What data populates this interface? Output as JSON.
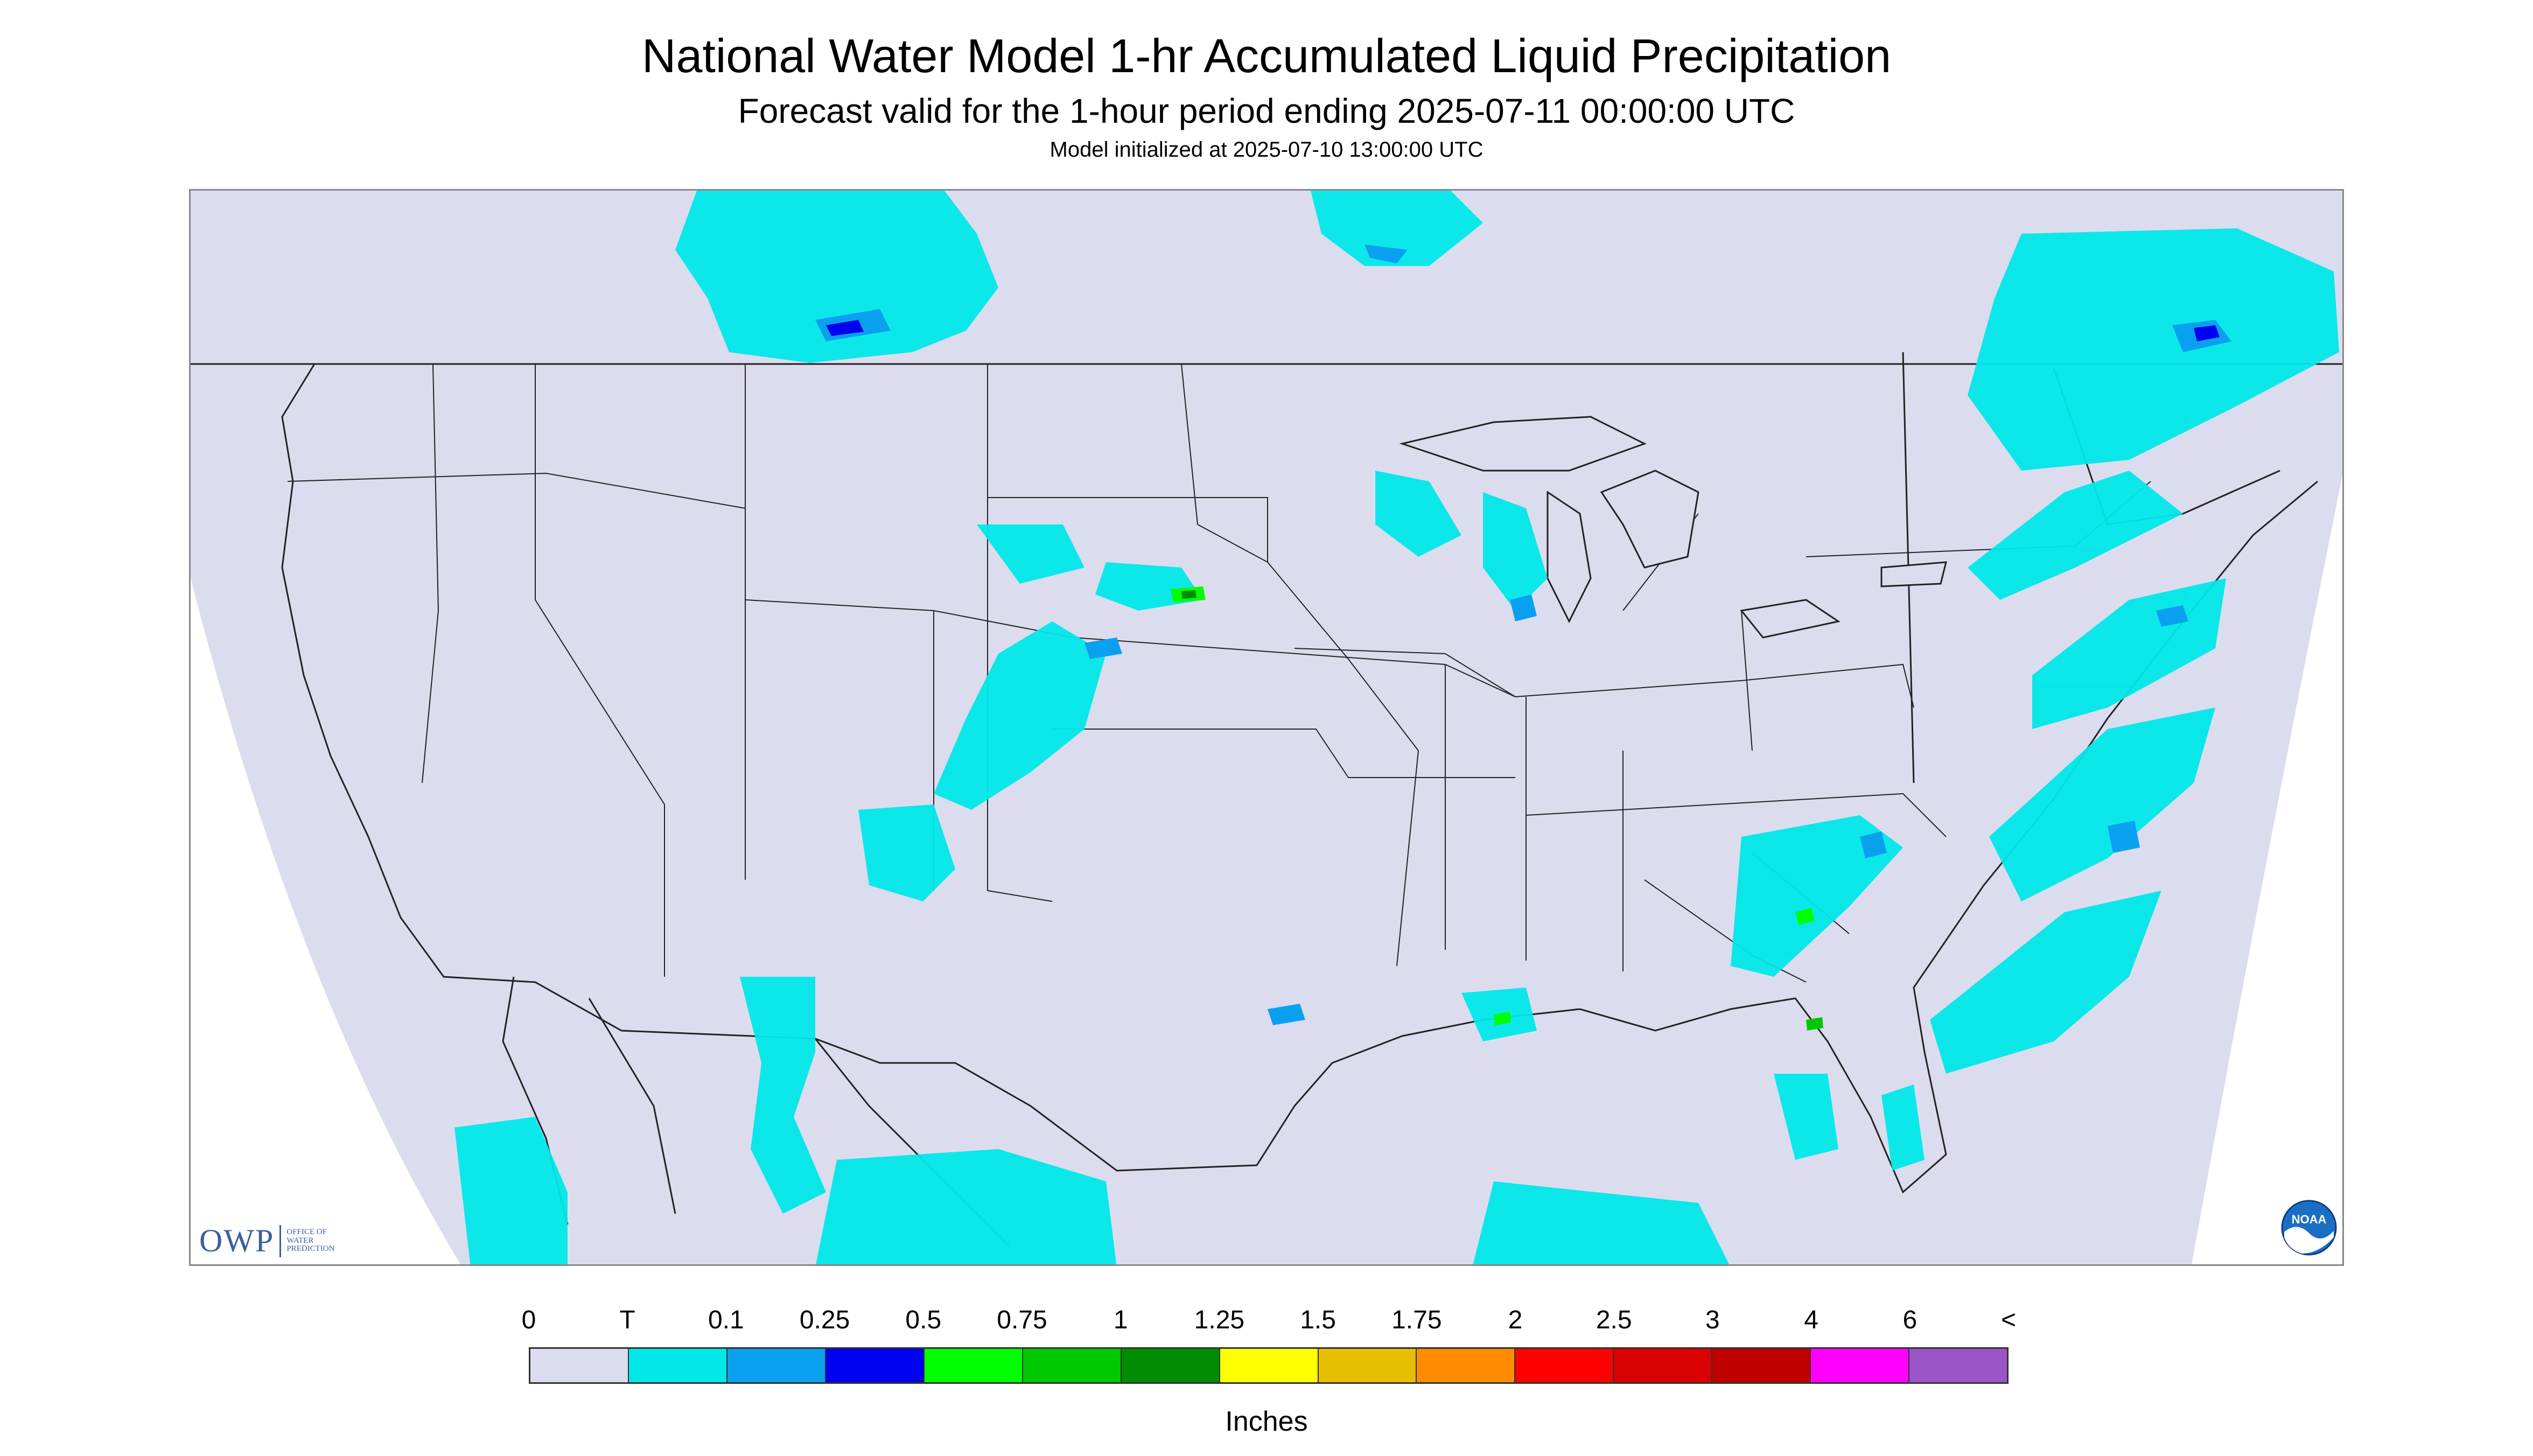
{
  "title": "National Water Model 1-hr Accumulated Liquid Precipitation",
  "subtitle": "Forecast valid for the 1-hour period ending 2025-07-11 00:00:00 UTC",
  "init": "Model initialized at 2025-07-10 13:00:00 UTC",
  "logo": {
    "big": "OWP",
    "line1": "OFFICE OF",
    "line2": "WATER",
    "line3": "PREDICTION"
  },
  "noaa": {
    "label": "NOAA"
  },
  "colors": {
    "background": "#dcdcef",
    "outside": "#ffffff",
    "borders": "#222222"
  },
  "legend": {
    "units": "Inches",
    "labels": [
      "0",
      "T",
      "0.1",
      "0.25",
      "0.5",
      "0.75",
      "1",
      "1.25",
      "1.5",
      "1.75",
      "2",
      "2.5",
      "3",
      "4",
      "6",
      "<"
    ],
    "colors": [
      "#dcdcef",
      "#00e8e8",
      "#0aa0f0",
      "#0000f0",
      "#00ff00",
      "#00c800",
      "#008c00",
      "#ffff00",
      "#e6bf00",
      "#ff8c00",
      "#ff0000",
      "#d80000",
      "#c00000",
      "#ff00ff",
      "#9b55c9"
    ]
  }
}
